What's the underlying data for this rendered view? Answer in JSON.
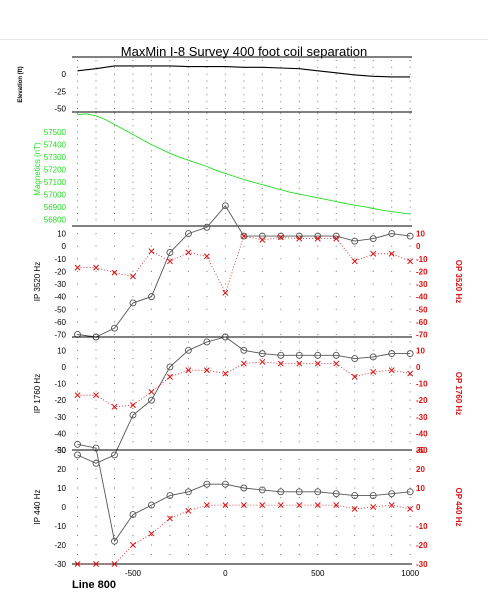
{
  "title": "MaxMin I-8 Survey 400 foot coil separation",
  "footer_label": "Line 800",
  "x_ticks": [
    -500,
    0,
    500,
    1000
  ],
  "colors": {
    "axes": "#000000",
    "magnetics": "#22dd22",
    "op": "#dd1111",
    "ip": "#555555",
    "grid": "#777777"
  },
  "chart_data": [
    {
      "type": "line",
      "ylabel": "Elevation (ft)",
      "ylim": [
        -55,
        25
      ],
      "yticks": [
        0,
        -25,
        -50
      ],
      "series": [
        {
          "x": [
            -800,
            -700,
            -600,
            -500,
            -400,
            -300,
            -200,
            -100,
            0,
            100,
            200,
            300,
            400,
            500,
            600,
            700,
            800,
            900,
            1000
          ],
          "y": [
            5,
            8,
            12,
            12,
            12,
            12,
            11,
            11,
            11,
            10,
            10,
            9,
            8,
            5,
            2,
            -1,
            -3,
            -4,
            -4
          ]
        }
      ]
    },
    {
      "type": "line",
      "ylabel": "Magnetics (nT)",
      "ylim": [
        56750,
        57660
      ],
      "yticks": [
        56800,
        56900,
        57000,
        57100,
        57200,
        57300,
        57400,
        57500
      ],
      "series": [
        {
          "name": "Magnetics (nT)",
          "x": [
            -800,
            -750,
            -700,
            -650,
            -600,
            -550,
            -500,
            -450,
            -400,
            -350,
            -300,
            -250,
            -200,
            -150,
            -100,
            -50,
            0,
            50,
            100,
            150,
            200,
            250,
            300,
            350,
            400,
            450,
            500,
            550,
            600,
            650,
            700,
            750,
            800,
            850,
            900,
            950,
            1000
          ],
          "y": [
            57640,
            57645,
            57630,
            57600,
            57560,
            57520,
            57480,
            57440,
            57400,
            57365,
            57330,
            57300,
            57275,
            57250,
            57225,
            57195,
            57170,
            57145,
            57120,
            57100,
            57080,
            57060,
            57040,
            57020,
            57005,
            56990,
            56975,
            56960,
            56945,
            56930,
            56915,
            56905,
            56890,
            56875,
            56865,
            56855,
            56845
          ]
        }
      ]
    },
    {
      "type": "line",
      "ylabel": "IP  3520 Hz",
      "ylabel_right": "OP  3520 Hz",
      "ylim": [
        -72,
        16
      ],
      "yticks": [
        10,
        0,
        -10,
        -20,
        -30,
        -40,
        -50,
        -60,
        -70
      ],
      "series": [
        {
          "name": "IP  3520 Hz",
          "x": [
            -800,
            -700,
            -600,
            -500,
            -400,
            -300,
            -200,
            -100,
            0,
            100,
            200,
            300,
            400,
            500,
            600,
            700,
            800,
            900,
            1000
          ],
          "y": [
            -70,
            -72,
            -65,
            -45,
            -40,
            -5,
            10,
            15,
            32,
            8,
            8,
            8,
            8,
            8,
            8,
            4,
            6,
            10,
            8
          ]
        },
        {
          "name": "OP  3520 Hz",
          "x": [
            -800,
            -700,
            -600,
            -500,
            -400,
            -300,
            -200,
            -100,
            0,
            100,
            200,
            300,
            400,
            500,
            600,
            700,
            800,
            900,
            1000
          ],
          "y": [
            -17,
            -17,
            -21,
            -24,
            -4,
            -12,
            -5,
            -8,
            -37,
            8,
            5,
            7,
            6,
            6,
            6,
            -12,
            -6,
            -6,
            -12
          ]
        }
      ]
    },
    {
      "type": "line",
      "ylabel": "IP  1760 Hz",
      "ylabel_right": "OP  1760 Hz",
      "ylim": [
        -50,
        18
      ],
      "yticks": [
        10,
        0,
        -10,
        -20,
        -30,
        -40,
        -50
      ],
      "series": [
        {
          "name": "IP  1760 Hz",
          "x": [
            -800,
            -700,
            -600,
            -500,
            -400,
            -300,
            -200,
            -100,
            0,
            100,
            200,
            300,
            400,
            500,
            600,
            700,
            800,
            900,
            1000
          ],
          "y": [
            -53,
            -58,
            -53,
            -29,
            -20,
            0,
            10,
            15,
            18,
            10,
            8,
            7,
            7,
            7,
            7,
            5,
            6,
            8,
            8
          ]
        },
        {
          "name": "OP  1760 Hz",
          "x": [
            -800,
            -700,
            -600,
            -500,
            -400,
            -300,
            -200,
            -100,
            0,
            100,
            200,
            300,
            400,
            500,
            600,
            700,
            800,
            900,
            1000
          ],
          "y": [
            -17,
            -17,
            -24,
            -23,
            -15,
            -6,
            -2,
            -2,
            -4,
            2,
            3,
            2,
            2,
            2,
            2,
            -6,
            -3,
            -2,
            -4
          ]
        }
      ]
    },
    {
      "type": "line",
      "ylabel": "IP  440 Hz",
      "ylabel_right": "OP  440 Hz",
      "ylim": [
        -30,
        30
      ],
      "yticks": [
        30,
        20,
        10,
        0,
        -10,
        -20,
        -30
      ],
      "series": [
        {
          "name": "IP  440 Hz",
          "x": [
            -800,
            -700,
            -600,
            -500,
            -400,
            -300,
            -200,
            -100,
            0,
            100,
            200,
            300,
            400,
            500,
            600,
            700,
            800,
            900,
            1000
          ],
          "y": [
            33,
            31,
            -18,
            -4,
            1,
            6,
            8,
            12,
            12,
            10,
            9,
            8,
            8,
            8,
            7,
            6,
            6,
            7,
            8
          ]
        },
        {
          "name": "OP  440 Hz",
          "x": [
            -800,
            -700,
            -600,
            -500,
            -400,
            -300,
            -200,
            -100,
            0,
            100,
            200,
            300,
            400,
            500,
            600,
            700,
            800,
            900,
            1000
          ],
          "y": [
            -30,
            -30,
            -30,
            -20,
            -14,
            -6,
            -2,
            1,
            1,
            1,
            1,
            1,
            1,
            1,
            1,
            -1,
            0,
            1,
            -1
          ]
        }
      ]
    }
  ]
}
